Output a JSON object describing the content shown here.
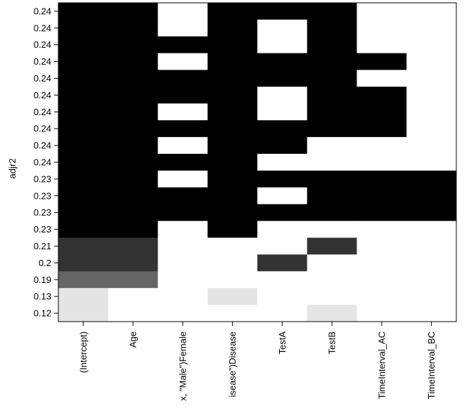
{
  "chart_data": {
    "type": "subsets",
    "y_label": "adjr2",
    "columns": [
      "(Intercept)",
      "Age",
      "x, \"Male\")Female",
      "isease\")Disease",
      "TestA",
      "TestB",
      "TimeInterval_AC",
      "TimeInterval_BC"
    ],
    "rows": [
      {
        "label": "0.24",
        "color": "#000000",
        "included": [
          1,
          1,
          0,
          1,
          1,
          1,
          0,
          0
        ]
      },
      {
        "label": "0.24",
        "color": "#000000",
        "included": [
          1,
          1,
          0,
          1,
          0,
          1,
          0,
          0
        ]
      },
      {
        "label": "0.24",
        "color": "#000000",
        "included": [
          1,
          1,
          1,
          1,
          0,
          1,
          0,
          0
        ]
      },
      {
        "label": "0.24",
        "color": "#000000",
        "included": [
          1,
          1,
          0,
          1,
          1,
          1,
          1,
          0
        ]
      },
      {
        "label": "0.24",
        "color": "#000000",
        "included": [
          1,
          1,
          1,
          1,
          1,
          1,
          0,
          0
        ]
      },
      {
        "label": "0.24",
        "color": "#000000",
        "included": [
          1,
          1,
          1,
          1,
          0,
          1,
          1,
          0
        ]
      },
      {
        "label": "0.24",
        "color": "#000000",
        "included": [
          1,
          1,
          0,
          1,
          0,
          1,
          1,
          0
        ]
      },
      {
        "label": "0.24",
        "color": "#000000",
        "included": [
          1,
          1,
          1,
          1,
          1,
          1,
          1,
          0
        ]
      },
      {
        "label": "0.24",
        "color": "#000000",
        "included": [
          1,
          1,
          0,
          1,
          1,
          0,
          0,
          0
        ]
      },
      {
        "label": "0.24",
        "color": "#000000",
        "included": [
          1,
          1,
          1,
          1,
          0,
          0,
          0,
          0
        ]
      },
      {
        "label": "0.23",
        "color": "#000000",
        "included": [
          1,
          1,
          0,
          1,
          1,
          1,
          1,
          1
        ]
      },
      {
        "label": "0.23",
        "color": "#000000",
        "included": [
          1,
          1,
          1,
          1,
          0,
          1,
          1,
          1
        ]
      },
      {
        "label": "0.23",
        "color": "#000000",
        "included": [
          1,
          1,
          1,
          1,
          1,
          1,
          1,
          1
        ]
      },
      {
        "label": "0.23",
        "color": "#000000",
        "included": [
          1,
          1,
          0,
          1,
          0,
          0,
          0,
          0
        ]
      },
      {
        "label": "0.21",
        "color": "#333333",
        "included": [
          1,
          1,
          0,
          0,
          0,
          1,
          0,
          0
        ]
      },
      {
        "label": "0.2",
        "color": "#333333",
        "included": [
          1,
          1,
          0,
          0,
          1,
          0,
          0,
          0
        ]
      },
      {
        "label": "0.19",
        "color": "#666666",
        "included": [
          1,
          1,
          0,
          0,
          0,
          0,
          0,
          0
        ]
      },
      {
        "label": "0.13",
        "color": "#e5e5e5",
        "included": [
          1,
          0,
          0,
          1,
          0,
          0,
          0,
          0
        ]
      },
      {
        "label": "0.12",
        "color": "#e5e5e5",
        "included": [
          1,
          0,
          0,
          0,
          0,
          1,
          0,
          0
        ]
      }
    ]
  }
}
